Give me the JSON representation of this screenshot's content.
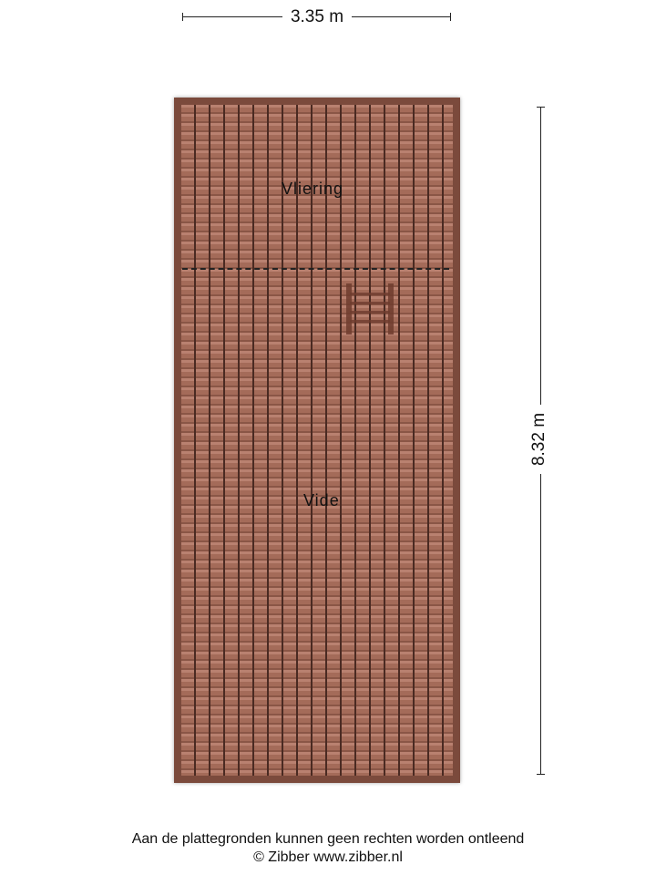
{
  "dimensions": {
    "width_label": "3.35 m",
    "height_label": "8.32 m"
  },
  "rooms": [
    {
      "name": "Vliering"
    },
    {
      "name": "Vide"
    }
  ],
  "colors": {
    "roof_tile": "#a9715f",
    "roof_edge": "#7b4a3c",
    "tile_line": "#4a2a22"
  },
  "icons": {
    "stair": "loft-ladder"
  },
  "footer": {
    "disclaimer": "Aan de plattegronden kunnen geen rechten worden ontleend",
    "copyright": "© Zibber www.zibber.nl"
  }
}
